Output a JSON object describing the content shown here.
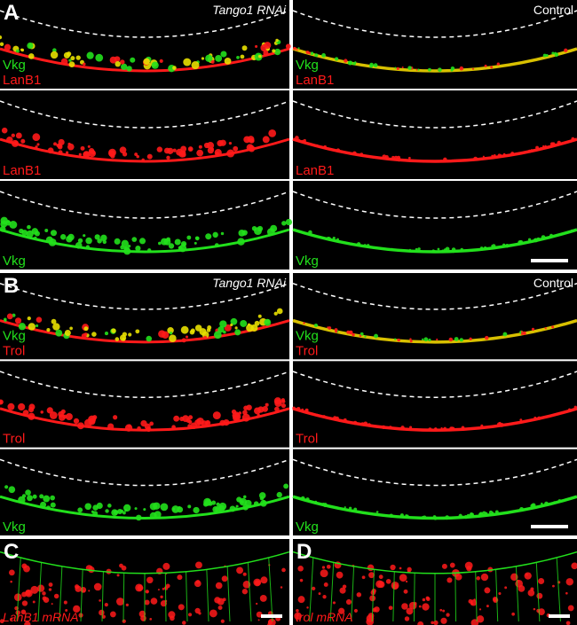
{
  "panels": [
    {
      "letter": "A",
      "columns": [
        {
          "condition": "Tango1 RNAi",
          "rows": [
            [
              "Vkg",
              "LanB1"
            ],
            [
              "LanB1"
            ],
            [
              "Vkg"
            ]
          ]
        },
        {
          "condition": "Control",
          "rows": [
            [
              "Vkg",
              "LanB1"
            ],
            [
              "LanB1"
            ],
            [
              "Vkg"
            ]
          ]
        }
      ]
    },
    {
      "letter": "B",
      "columns": [
        {
          "condition": "Tango1 RNAi",
          "rows": [
            [
              "Vkg",
              "Trol"
            ],
            [
              "Trol"
            ],
            [
              "Vkg"
            ]
          ]
        },
        {
          "condition": "Control",
          "rows": [
            [
              "Vkg",
              "Trol"
            ],
            [
              "Trol"
            ],
            [
              "Vkg"
            ]
          ]
        }
      ]
    },
    {
      "letter": "C",
      "label": "LanB1 mRNA"
    },
    {
      "letter": "D",
      "label": "trol mRNA"
    }
  ]
}
